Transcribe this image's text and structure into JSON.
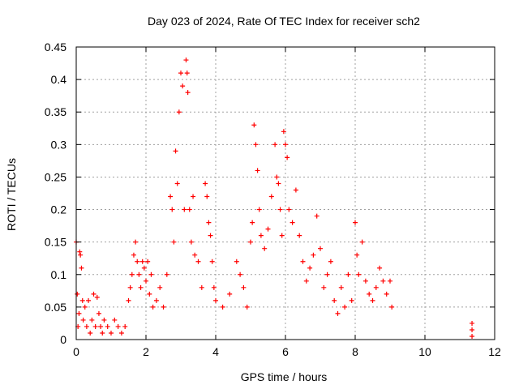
{
  "chart_data": {
    "type": "scatter",
    "title": "Day 023 of 2024, Rate Of TEC Index for receiver sch2",
    "xlabel": "GPS time / hours",
    "ylabel": "ROTI / TECUs",
    "xlim": [
      0,
      12
    ],
    "ylim": [
      0,
      0.45
    ],
    "x_ticks": [
      "0",
      "2",
      "4",
      "6",
      "8",
      "10",
      "12"
    ],
    "y_ticks": [
      "0",
      "0.05",
      "0.1",
      "0.15",
      "0.2",
      "0.25",
      "0.3",
      "0.35",
      "0.4",
      "0.45"
    ],
    "grid": true,
    "marker": "plus",
    "series": [
      {
        "color": "#ff0000",
        "points": [
          [
            0.0,
            0.15
          ],
          [
            0.03,
            0.07
          ],
          [
            0.05,
            0.02
          ],
          [
            0.08,
            0.04
          ],
          [
            0.1,
            0.135
          ],
          [
            0.12,
            0.13
          ],
          [
            0.15,
            0.11
          ],
          [
            0.18,
            0.06
          ],
          [
            0.2,
            0.03
          ],
          [
            0.25,
            0.05
          ],
          [
            0.3,
            0.02
          ],
          [
            0.35,
            0.06
          ],
          [
            0.4,
            0.01
          ],
          [
            0.45,
            0.03
          ],
          [
            0.5,
            0.07
          ],
          [
            0.55,
            0.02
          ],
          [
            0.6,
            0.065
          ],
          [
            0.65,
            0.04
          ],
          [
            0.7,
            0.02
          ],
          [
            0.75,
            0.01
          ],
          [
            0.8,
            0.03
          ],
          [
            0.9,
            0.02
          ],
          [
            1.0,
            0.01
          ],
          [
            1.1,
            0.03
          ],
          [
            1.2,
            0.02
          ],
          [
            1.3,
            0.01
          ],
          [
            1.4,
            0.02
          ],
          [
            1.5,
            0.06
          ],
          [
            1.55,
            0.08
          ],
          [
            1.6,
            0.1
          ],
          [
            1.65,
            0.13
          ],
          [
            1.7,
            0.15
          ],
          [
            1.75,
            0.12
          ],
          [
            1.8,
            0.1
          ],
          [
            1.85,
            0.08
          ],
          [
            1.9,
            0.12
          ],
          [
            1.95,
            0.11
          ],
          [
            2.0,
            0.09
          ],
          [
            2.05,
            0.12
          ],
          [
            2.1,
            0.07
          ],
          [
            2.15,
            0.1
          ],
          [
            2.2,
            0.05
          ],
          [
            2.3,
            0.06
          ],
          [
            2.4,
            0.08
          ],
          [
            2.5,
            0.05
          ],
          [
            2.6,
            0.1
          ],
          [
            2.7,
            0.22
          ],
          [
            2.75,
            0.2
          ],
          [
            2.8,
            0.15
          ],
          [
            2.85,
            0.29
          ],
          [
            2.9,
            0.24
          ],
          [
            2.95,
            0.35
          ],
          [
            3.0,
            0.41
          ],
          [
            3.05,
            0.39
          ],
          [
            3.1,
            0.2
          ],
          [
            3.15,
            0.43
          ],
          [
            3.18,
            0.41
          ],
          [
            3.2,
            0.38
          ],
          [
            3.25,
            0.2
          ],
          [
            3.3,
            0.15
          ],
          [
            3.35,
            0.22
          ],
          [
            3.4,
            0.13
          ],
          [
            3.5,
            0.12
          ],
          [
            3.6,
            0.08
          ],
          [
            3.7,
            0.24
          ],
          [
            3.75,
            0.22
          ],
          [
            3.8,
            0.18
          ],
          [
            3.85,
            0.16
          ],
          [
            3.9,
            0.12
          ],
          [
            3.95,
            0.08
          ],
          [
            4.0,
            0.06
          ],
          [
            4.2,
            0.05
          ],
          [
            4.4,
            0.07
          ],
          [
            4.6,
            0.12
          ],
          [
            4.7,
            0.1
          ],
          [
            4.8,
            0.08
          ],
          [
            4.9,
            0.05
          ],
          [
            5.0,
            0.15
          ],
          [
            5.05,
            0.18
          ],
          [
            5.1,
            0.33
          ],
          [
            5.15,
            0.3
          ],
          [
            5.2,
            0.26
          ],
          [
            5.25,
            0.2
          ],
          [
            5.3,
            0.16
          ],
          [
            5.4,
            0.14
          ],
          [
            5.5,
            0.17
          ],
          [
            5.6,
            0.22
          ],
          [
            5.7,
            0.3
          ],
          [
            5.75,
            0.25
          ],
          [
            5.8,
            0.24
          ],
          [
            5.85,
            0.2
          ],
          [
            5.9,
            0.16
          ],
          [
            5.95,
            0.32
          ],
          [
            6.0,
            0.3
          ],
          [
            6.05,
            0.28
          ],
          [
            6.1,
            0.2
          ],
          [
            6.2,
            0.18
          ],
          [
            6.3,
            0.23
          ],
          [
            6.4,
            0.16
          ],
          [
            6.5,
            0.12
          ],
          [
            6.6,
            0.09
          ],
          [
            6.7,
            0.11
          ],
          [
            6.8,
            0.13
          ],
          [
            6.9,
            0.19
          ],
          [
            7.0,
            0.14
          ],
          [
            7.1,
            0.08
          ],
          [
            7.2,
            0.1
          ],
          [
            7.3,
            0.12
          ],
          [
            7.4,
            0.06
          ],
          [
            7.5,
            0.04
          ],
          [
            7.6,
            0.08
          ],
          [
            7.7,
            0.05
          ],
          [
            7.8,
            0.1
          ],
          [
            7.9,
            0.06
          ],
          [
            8.0,
            0.18
          ],
          [
            8.05,
            0.13
          ],
          [
            8.1,
            0.1
          ],
          [
            8.2,
            0.15
          ],
          [
            8.3,
            0.09
          ],
          [
            8.4,
            0.07
          ],
          [
            8.5,
            0.06
          ],
          [
            8.6,
            0.08
          ],
          [
            8.7,
            0.11
          ],
          [
            8.8,
            0.09
          ],
          [
            8.9,
            0.07
          ],
          [
            9.0,
            0.09
          ],
          [
            9.05,
            0.05
          ],
          [
            11.35,
            0.025
          ],
          [
            11.35,
            0.015
          ],
          [
            11.35,
            0.005
          ]
        ]
      }
    ]
  }
}
